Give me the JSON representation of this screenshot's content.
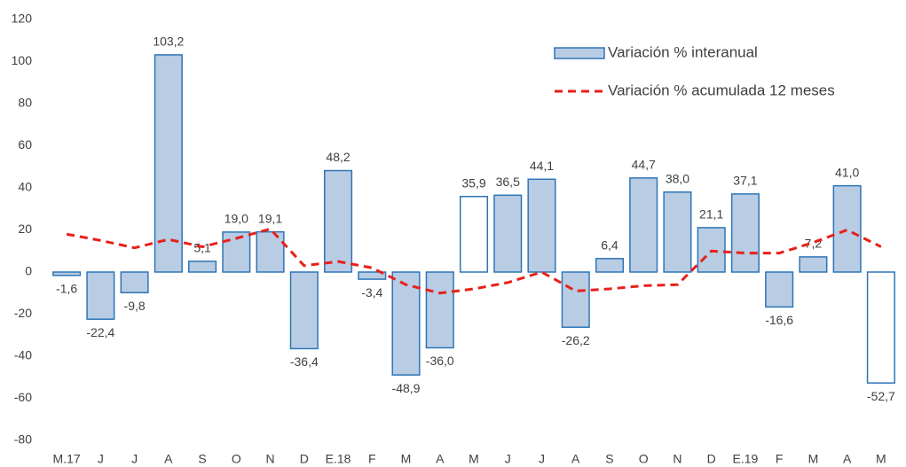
{
  "chart_data": {
    "type": "bar",
    "categories": [
      "M.17",
      "J",
      "J",
      "A",
      "S",
      "O",
      "N",
      "D",
      "E.18",
      "F",
      "M",
      "A",
      "M",
      "J",
      "J",
      "A",
      "S",
      "O",
      "N",
      "D",
      "E.19",
      "F",
      "M",
      "A",
      "M"
    ],
    "series": [
      {
        "name": "Variación % interanual",
        "type": "bar",
        "color": "#b8cce4",
        "stroke": "#2e75b6",
        "colors": [
          "#b8cce4",
          "#b8cce4",
          "#b8cce4",
          "#b8cce4",
          "#b8cce4",
          "#b8cce4",
          "#b8cce4",
          "#b8cce4",
          "#b8cce4",
          "#b8cce4",
          "#b8cce4",
          "#b8cce4",
          "#ffffff",
          "#b8cce4",
          "#b8cce4",
          "#b8cce4",
          "#b8cce4",
          "#b8cce4",
          "#b8cce4",
          "#b8cce4",
          "#b8cce4",
          "#b8cce4",
          "#b8cce4",
          "#b8cce4",
          "#ffffff"
        ],
        "values": [
          -1.6,
          -22.4,
          -9.8,
          103.2,
          5.1,
          19.0,
          19.1,
          -36.4,
          48.2,
          -3.4,
          -48.9,
          -36.0,
          35.9,
          36.5,
          44.1,
          -26.2,
          6.4,
          44.7,
          38.0,
          21.1,
          37.1,
          -16.6,
          7.2,
          41.0,
          -52.7
        ],
        "value_labels": [
          "-1,6",
          "-22,4",
          "-9,8",
          "103,2",
          "5,1",
          "19,0",
          "19,1",
          "-36,4",
          "48,2",
          "-3,4",
          "-48,9",
          "-36,0",
          "35,9",
          "36,5",
          "44,1",
          "-26,2",
          "6,4",
          "44,7",
          "38,0",
          "21,1",
          "37,1",
          "-16,6",
          "7,2",
          "41,0",
          "-52,7"
        ]
      },
      {
        "name": "Variación % acumulada 12 meses",
        "type": "line",
        "color": "#e8201a",
        "dashed": true,
        "values": [
          18,
          15,
          11.5,
          15.5,
          12,
          16,
          20.5,
          3,
          5,
          2,
          -6,
          -10,
          -8,
          -5,
          0,
          -9,
          -8,
          -6.5,
          -6,
          10,
          9,
          9,
          14,
          20,
          12
        ]
      }
    ],
    "ylim": [
      -80,
      120
    ],
    "yticks": [
      -80,
      -60,
      -40,
      -20,
      0,
      20,
      40,
      60,
      80,
      100,
      120
    ],
    "grid": false,
    "legend": "upper right"
  }
}
